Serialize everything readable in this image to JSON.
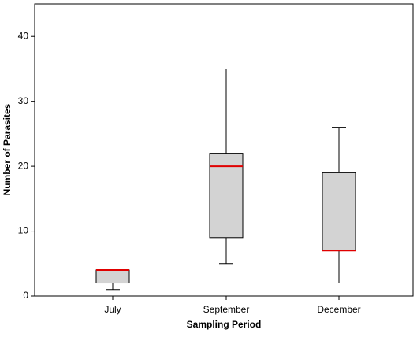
{
  "chart_data": {
    "type": "box",
    "x_label": "Sampling Period",
    "y_label": "Number of Parasites",
    "categories": [
      "July",
      "September",
      "December"
    ],
    "min": [
      1,
      5,
      2
    ],
    "q1": [
      2,
      9,
      7
    ],
    "median": [
      4,
      20,
      7
    ],
    "q3": [
      4,
      22,
      19
    ],
    "max": [
      4,
      35,
      26
    ],
    "color": "#d3d3d3",
    "median_color": "#e00000",
    "ylim": [
      0,
      45
    ],
    "yticks": [
      0,
      10,
      20,
      30,
      40
    ],
    "grid": false
  }
}
